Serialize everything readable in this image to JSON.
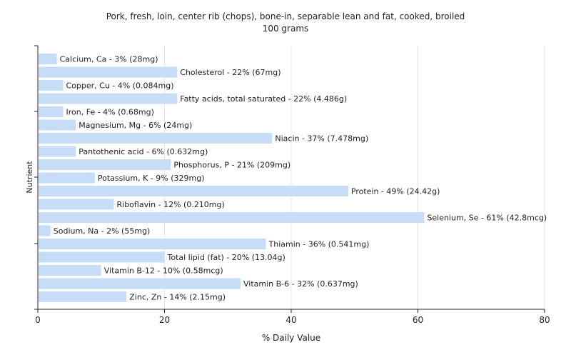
{
  "chart_data": {
    "type": "bar",
    "orientation": "horizontal",
    "title": "Pork, fresh, loin, center rib (chops), bone-in, separable lean and fat, cooked, broiled",
    "subtitle": "100 grams",
    "xlabel": "% Daily Value",
    "ylabel": "Nutrient",
    "xlim": [
      0,
      80
    ],
    "xticks": [
      0,
      20,
      40,
      60,
      80
    ],
    "grid": true,
    "color": "#c6dcf7",
    "categories": [
      "Calcium, Ca - 3% (28mg)",
      "Cholesterol - 22% (67mg)",
      "Copper, Cu - 4% (0.084mg)",
      "Fatty acids, total saturated - 22% (4.486g)",
      "Iron, Fe - 4% (0.68mg)",
      "Magnesium, Mg - 6% (24mg)",
      "Niacin - 37% (7.478mg)",
      "Pantothenic acid - 6% (0.632mg)",
      "Phosphorus, P - 21% (209mg)",
      "Potassium, K - 9% (329mg)",
      "Protein - 49% (24.42g)",
      "Riboflavin - 12% (0.210mg)",
      "Selenium, Se - 61% (42.8mcg)",
      "Sodium, Na - 2% (55mg)",
      "Thiamin - 36% (0.541mg)",
      "Total lipid (fat) - 20% (13.04g)",
      "Vitamin B-12 - 10% (0.58mcg)",
      "Vitamin B-6 - 32% (0.637mg)",
      "Zinc, Zn - 14% (2.15mg)"
    ],
    "values": [
      3,
      22,
      4,
      22,
      4,
      6,
      37,
      6,
      21,
      9,
      49,
      12,
      61,
      2,
      36,
      20,
      10,
      32,
      14
    ]
  }
}
